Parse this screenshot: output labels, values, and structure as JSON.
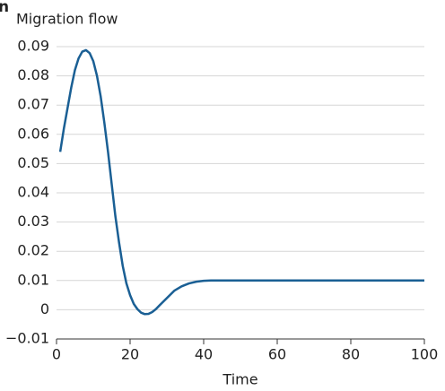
{
  "chart_data": {
    "type": "line",
    "panel_label": "n",
    "y_label": "Migration flow",
    "x_label": "Time",
    "x": [
      1,
      2,
      3,
      4,
      5,
      6,
      7,
      8,
      9,
      10,
      11,
      12,
      13,
      14,
      15,
      16,
      17,
      18,
      19,
      20,
      21,
      22,
      23,
      24,
      25,
      26,
      27,
      28,
      30,
      32,
      34,
      36,
      38,
      40,
      42,
      45,
      50,
      60,
      70,
      80,
      90,
      100
    ],
    "series": [
      {
        "name": "Migration flow",
        "color": "#1a5f94",
        "values": [
          0.054,
          0.062,
          0.069,
          0.076,
          0.082,
          0.086,
          0.0883,
          0.0888,
          0.0878,
          0.085,
          0.08,
          0.073,
          0.064,
          0.054,
          0.043,
          0.032,
          0.023,
          0.015,
          0.009,
          0.005,
          0.002,
          0.0002,
          -0.001,
          -0.0015,
          -0.0014,
          -0.0008,
          0.0002,
          0.0015,
          0.004,
          0.0065,
          0.008,
          0.009,
          0.0096,
          0.0099,
          0.01,
          0.01,
          0.01,
          0.01,
          0.01,
          0.01,
          0.01,
          0.01
        ]
      }
    ],
    "xlim": [
      0,
      100
    ],
    "xticks": [
      0,
      20,
      40,
      60,
      80,
      100
    ],
    "ylim": [
      -0.01,
      0.09
    ],
    "yticks": [
      {
        "value": -0.01,
        "label": "−0.01"
      },
      0,
      0.01,
      0.02,
      0.03,
      0.04,
      0.05,
      0.06,
      0.07,
      0.08,
      0.09
    ],
    "grid": true
  }
}
